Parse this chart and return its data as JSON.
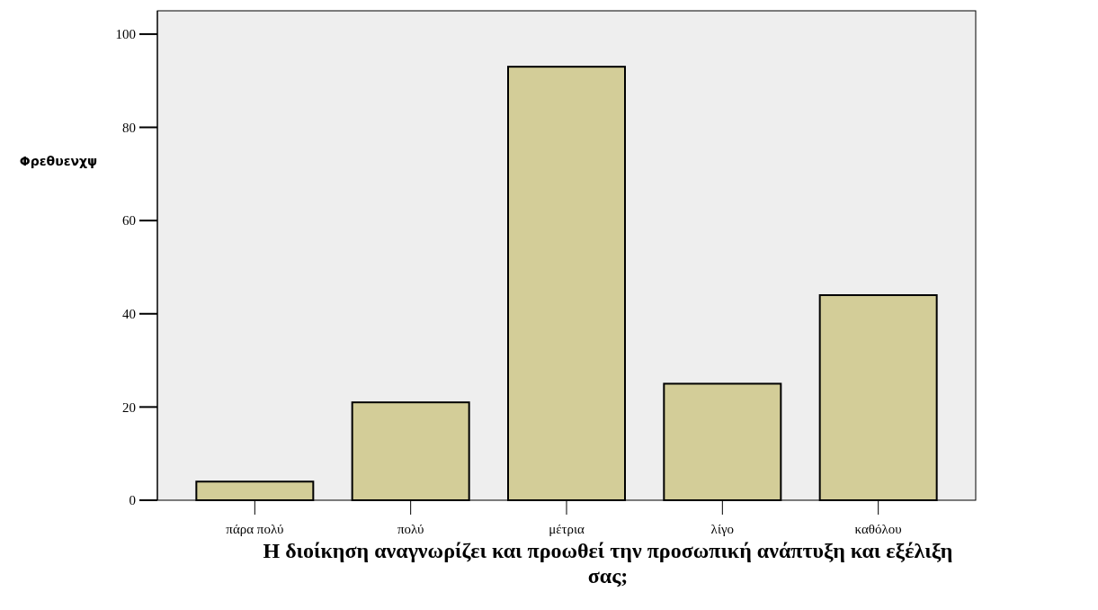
{
  "chart_data": {
    "type": "bar",
    "xlabel": "Η διοίκηση αναγνωρίζει και προωθεί την προσωπική ανάπτυξη και εξέλιξη σας;",
    "ylabel": "Φρεθυενχψ",
    "categories": [
      "πάρα πολύ",
      "πολύ",
      "μέτρια",
      "λίγο",
      "καθόλου"
    ],
    "values": [
      4,
      21,
      93,
      25,
      44
    ],
    "color": "#d3cd98",
    "ylim": [
      0,
      105
    ],
    "yticks": [
      0,
      20,
      40,
      60,
      80,
      100
    ],
    "grid": false
  }
}
